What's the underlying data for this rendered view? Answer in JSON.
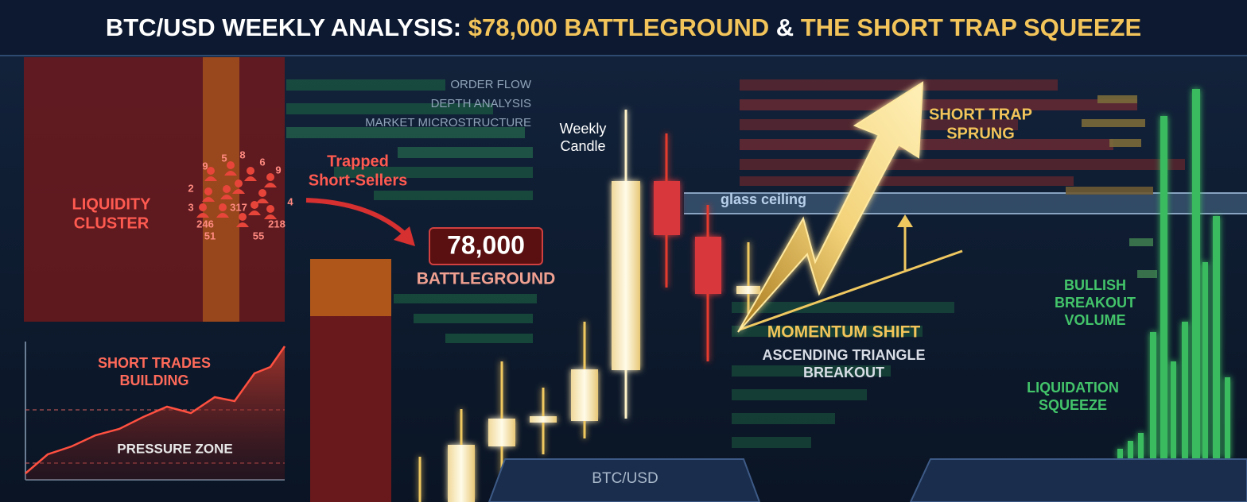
{
  "header": {
    "title_lead": "BTC/USD WEEKLY ANALYSIS:",
    "title_highlight_1": "$78,000 BATTLEGROUND",
    "title_joiner": "&",
    "title_highlight_2": "THE SHORT TRAP SQUEEZE"
  },
  "order_flow_labels": [
    "ORDER FLOW",
    "DEPTH ANALYSIS",
    "MARKET MICROSTRUCTURE"
  ],
  "weekly_candle": [
    "Weekly",
    "Candle"
  ],
  "trapped": [
    "Trapped",
    "Short-Sellers"
  ],
  "liquidity_cluster": [
    "LIQUIDITY",
    "CLUSTER"
  ],
  "cluster_numbers": [
    "9",
    "5",
    "8",
    "6",
    "9",
    "2",
    "317",
    "4",
    "3",
    "246",
    "218",
    "51",
    "55"
  ],
  "level": {
    "price": "78,000",
    "label": "BATTLEGROUND"
  },
  "glass_ceiling": "glass ceiling",
  "short_trap": [
    "SHORT TRAP",
    "SPRUNG"
  ],
  "momentum": {
    "title": "MOMENTUM SHIFT",
    "detail": [
      "ASCENDING TRIANGLE",
      "BREAKOUT"
    ]
  },
  "bullish_volume": [
    "BULLISH",
    "BREAKOUT",
    "VOLUME"
  ],
  "liquidation": [
    "LIQUIDATION",
    "SQUEEZE"
  ],
  "inset": {
    "title": [
      "SHORT TRADES",
      "BUILDING"
    ],
    "zone": "PRESSURE ZONE"
  },
  "footer_tab": "BTC/USD"
}
